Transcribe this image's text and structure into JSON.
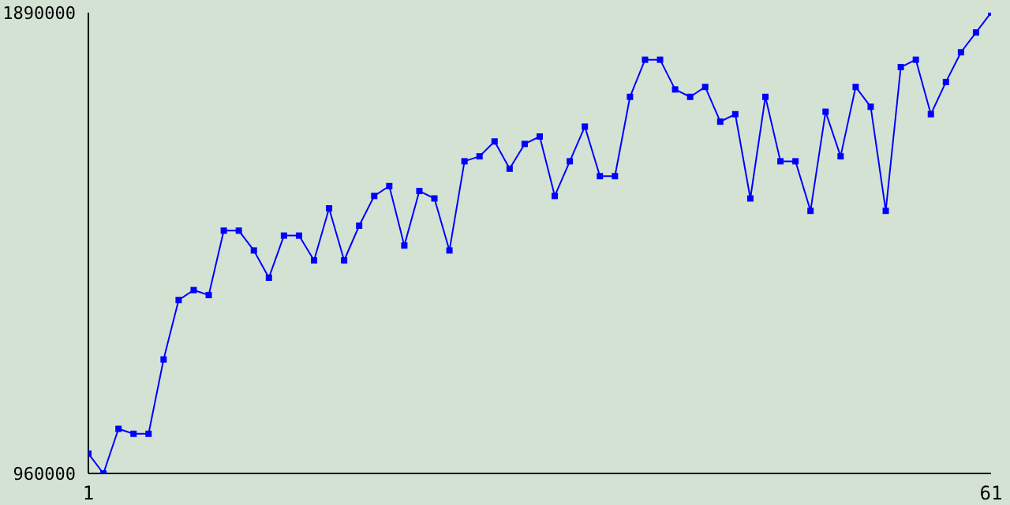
{
  "chart_data": {
    "type": "line",
    "x": [
      1,
      2,
      3,
      4,
      5,
      6,
      7,
      8,
      9,
      10,
      11,
      12,
      13,
      14,
      15,
      16,
      17,
      18,
      19,
      20,
      21,
      22,
      23,
      24,
      25,
      26,
      27,
      28,
      29,
      30,
      31,
      32,
      33,
      34,
      35,
      36,
      37,
      38,
      39,
      40,
      41,
      42,
      43,
      44,
      45,
      46,
      47,
      48,
      49,
      50,
      51,
      52,
      53,
      54,
      55,
      56,
      57,
      58,
      59,
      60,
      61
    ],
    "series": [
      {
        "color": "#0000ff",
        "values": [
          1000000,
          960000,
          1050000,
          1040000,
          1040000,
          1190000,
          1310000,
          1330000,
          1320000,
          1450000,
          1450000,
          1410000,
          1355000,
          1440000,
          1440000,
          1390000,
          1495000,
          1390000,
          1460000,
          1520000,
          1540000,
          1420000,
          1530000,
          1515000,
          1410000,
          1590000,
          1600000,
          1630000,
          1575000,
          1625000,
          1640000,
          1520000,
          1590000,
          1660000,
          1560000,
          1560000,
          1720000,
          1795000,
          1795000,
          1735000,
          1720000,
          1740000,
          1670000,
          1685000,
          1515000,
          1720000,
          1590000,
          1590000,
          1490000,
          1690000,
          1600000,
          1740000,
          1700000,
          1490000,
          1780000,
          1795000,
          1685000,
          1750000,
          1810000,
          1850000,
          1890000
        ]
      }
    ],
    "xlim": [
      1,
      61
    ],
    "xticks": [
      1,
      61
    ],
    "ylim": [
      960000,
      1890000
    ],
    "yticks": [
      960000,
      1890000
    ],
    "grid": false,
    "legend": false,
    "marker": "square",
    "line_style": "solid"
  }
}
